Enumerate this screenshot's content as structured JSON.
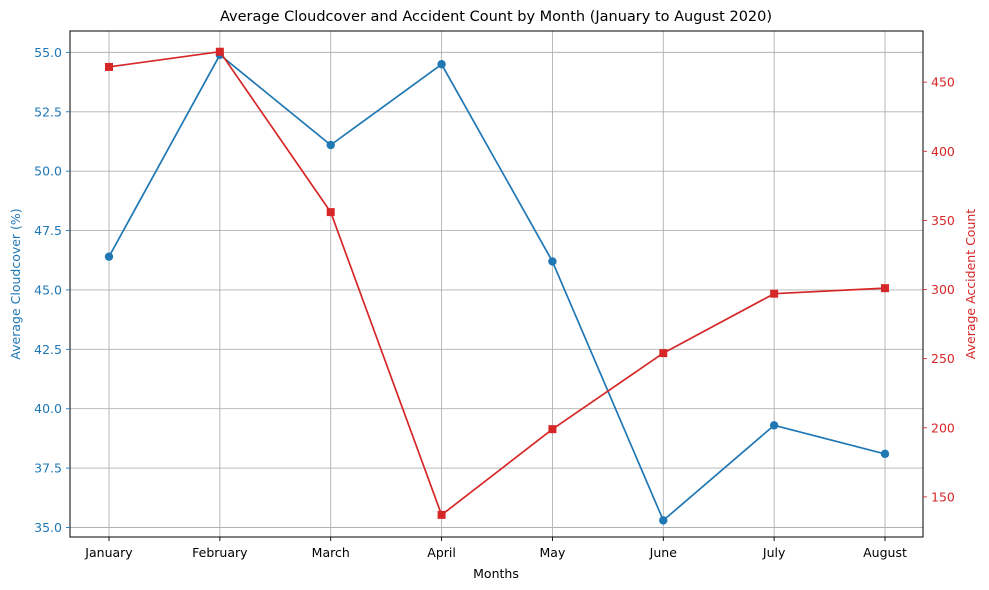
{
  "chart_data": {
    "type": "line",
    "title": "Average Cloudcover and Accident Count by Month (January to August 2020)",
    "xlabel": "Months",
    "ylabel_left": "Average Cloudcover (%)",
    "ylabel_right": "Average Accident Count",
    "categories": [
      "January",
      "February",
      "March",
      "April",
      "May",
      "June",
      "July",
      "August"
    ],
    "ylim_left": [
      34.6,
      55.9
    ],
    "ylim_right": [
      121,
      487
    ],
    "yticks_left": [
      "35.0",
      "37.5",
      "40.0",
      "42.5",
      "45.0",
      "47.5",
      "50.0",
      "52.5",
      "55.0"
    ],
    "yticks_right": [
      "150",
      "200",
      "250",
      "300",
      "350",
      "400",
      "450"
    ],
    "grid": true,
    "series": [
      {
        "axis": "left",
        "marker": "circle",
        "color": "#1f77b4",
        "values": [
          46.4,
          54.9,
          51.1,
          54.5,
          46.2,
          35.3,
          39.3,
          38.1
        ]
      },
      {
        "axis": "right",
        "marker": "square",
        "color": "#d62728",
        "values": [
          461,
          472,
          356,
          137,
          199,
          254,
          297,
          301
        ]
      }
    ]
  }
}
